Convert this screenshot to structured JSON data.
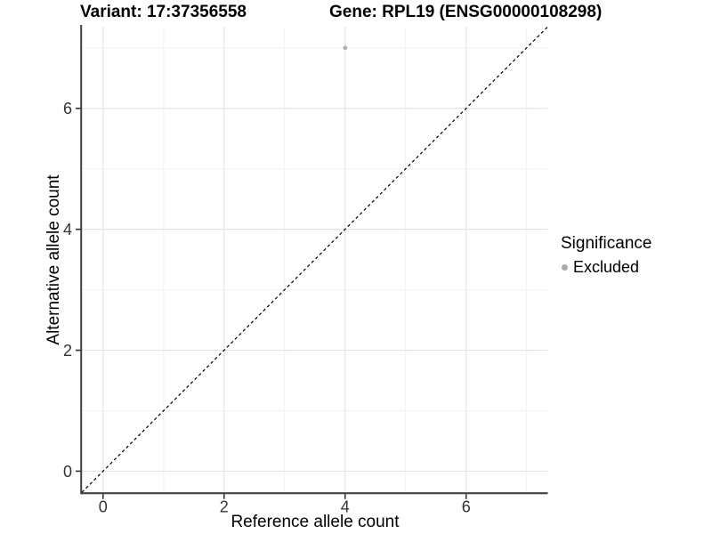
{
  "titles": {
    "variant": "Variant: 17:37356558",
    "gene": "Gene: RPL19 (ENSG00000108298)"
  },
  "axes": {
    "x_label": "Reference allele count",
    "y_label": "Alternative allele count"
  },
  "legend": {
    "title": "Significance",
    "items": [
      {
        "label": "Excluded",
        "color": "#ababab"
      }
    ]
  },
  "colors": {
    "background": "#ffffff",
    "point": "#b0b0b0",
    "grid_major": "#e4e4e4",
    "grid_minor": "#f1f1f1",
    "axis_line": "#404040",
    "tick_mark": "#333333",
    "tick_text": "#333333",
    "reference_line": "#000000"
  },
  "chart_data": {
    "type": "scatter",
    "title": "Variant: 17:37356558",
    "subtitle": "Gene: RPL19 (ENSG00000108298)",
    "xlabel": "Reference allele count",
    "ylabel": "Alternative allele count",
    "xlim": [
      -0.35,
      7.35
    ],
    "ylim": [
      -0.35,
      7.35
    ],
    "x_ticks": [
      0,
      2,
      4,
      6
    ],
    "y_ticks": [
      0,
      2,
      4,
      6
    ],
    "x_minor_ticks": [
      1,
      3,
      5,
      7
    ],
    "y_minor_ticks": [
      1,
      3,
      5,
      7
    ],
    "grid": true,
    "legend_position": "right",
    "series": [
      {
        "name": "Excluded",
        "color": "#b0b0b0",
        "points": [
          {
            "x": 4,
            "y": 7
          }
        ]
      }
    ],
    "reference_line": {
      "equation": "y = x",
      "style": "dashed",
      "slope": 1,
      "intercept": 0
    }
  }
}
